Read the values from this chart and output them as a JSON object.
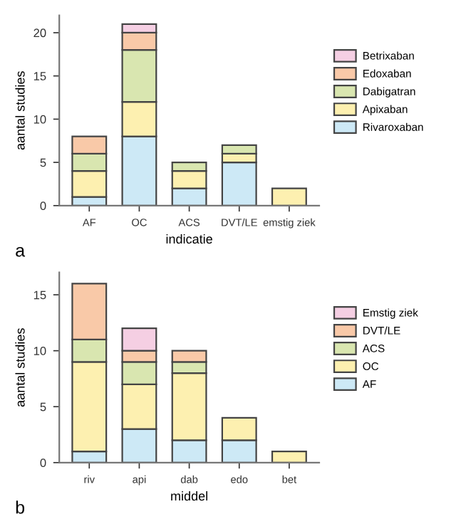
{
  "chart_data": [
    {
      "type": "bar",
      "stacked": true,
      "ylabel": "aantal studies",
      "xlabel": "indicatie",
      "categories": [
        "AF",
        "OC",
        "ACS",
        "DVT/LE",
        "emstig ziek"
      ],
      "ylim": [
        0,
        22
      ],
      "yticks": [
        0,
        5,
        10,
        15,
        20
      ],
      "legend": "right",
      "annotations": [
        "a"
      ],
      "series": [
        {
          "name": "Rivaroxaban",
          "color": "#cde9f6",
          "values": [
            1,
            8,
            2,
            5,
            null
          ]
        },
        {
          "name": "Apixaban",
          "color": "#fdf0b0",
          "values": [
            3,
            4,
            2,
            1,
            2
          ]
        },
        {
          "name": "Dabigatran",
          "color": "#d9e6b0",
          "values": [
            2,
            6,
            1,
            1,
            null
          ]
        },
        {
          "name": "Edoxaban",
          "color": "#f9c9a8",
          "values": [
            2,
            2,
            null,
            null,
            null
          ]
        },
        {
          "name": "Betrixaban",
          "color": "#f5cfe3",
          "values": [
            null,
            1,
            null,
            null,
            null
          ]
        }
      ]
    },
    {
      "type": "bar",
      "stacked": true,
      "ylabel": "aantal studies",
      "xlabel": "middel",
      "categories": [
        "riv",
        "api",
        "dab",
        "edo",
        "bet"
      ],
      "ylim": [
        0,
        17
      ],
      "yticks": [
        0,
        5,
        10,
        15
      ],
      "legend": "right",
      "annotations": [
        "b"
      ],
      "series": [
        {
          "name": "AF",
          "color": "#cde9f6",
          "values": [
            1,
            3,
            2,
            2,
            null
          ]
        },
        {
          "name": "OC",
          "color": "#fdf0b0",
          "values": [
            8,
            4,
            6,
            2,
            1
          ]
        },
        {
          "name": "ACS",
          "color": "#d9e6b0",
          "values": [
            2,
            2,
            1,
            null,
            null
          ]
        },
        {
          "name": "DVT/LE",
          "color": "#f9c9a8",
          "values": [
            5,
            1,
            1,
            null,
            null
          ]
        },
        {
          "name": "Emstig ziek",
          "color": "#f5cfe3",
          "values": [
            null,
            2,
            null,
            null,
            null
          ]
        }
      ]
    }
  ]
}
